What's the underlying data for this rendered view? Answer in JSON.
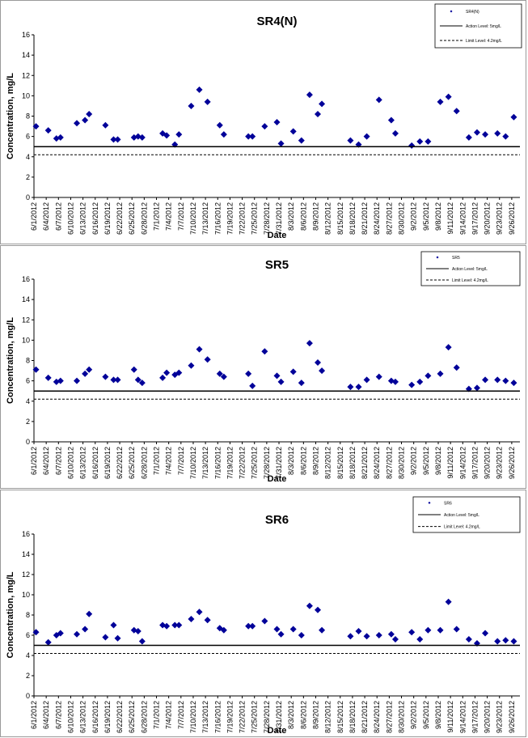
{
  "chart_data": [
    {
      "type": "scatter",
      "title": "SR4(N)",
      "xlabel": "Date",
      "ylabel": "Concentration, mg/L",
      "ylim": [
        0,
        16
      ],
      "yticks": [
        "0",
        "2",
        "4",
        "6",
        "8",
        "10",
        "12",
        "14",
        "16"
      ],
      "grid": false,
      "legend_position": "top-right",
      "x_tick_labels": [
        "6/1/2012",
        "6/4/2012",
        "6/7/2012",
        "6/10/2012",
        "6/13/2012",
        "6/16/2012",
        "6/19/2012",
        "6/22/2012",
        "6/25/2012",
        "6/28/2012",
        "7/1/2012",
        "7/4/2012",
        "7/7/2012",
        "7/10/2012",
        "7/13/2012",
        "7/16/2012",
        "7/19/2012",
        "7/22/2012",
        "7/25/2012",
        "7/28/2012",
        "7/31/2012",
        "8/3/2012",
        "8/6/2012",
        "8/9/2012",
        "8/12/2012",
        "8/15/2012",
        "8/18/2012",
        "8/21/2012",
        "8/24/2012",
        "8/27/2012",
        "8/30/2012",
        "9/2/2012",
        "9/5/2012",
        "9/8/2012",
        "9/11/2012",
        "9/14/2012",
        "9/17/2012",
        "9/20/2012",
        "9/23/2012",
        "9/26/2012"
      ],
      "series": [
        {
          "name": "SR4(N)",
          "marker": "diamond",
          "color": "#000099",
          "points": [
            [
              "6/1/2012",
              7.0
            ],
            [
              "6/4/2012",
              6.6
            ],
            [
              "6/6/2012",
              5.8
            ],
            [
              "6/7/2012",
              5.9
            ],
            [
              "6/11/2012",
              7.3
            ],
            [
              "6/13/2012",
              7.6
            ],
            [
              "6/14/2012",
              8.2
            ],
            [
              "6/18/2012",
              7.1
            ],
            [
              "6/20/2012",
              5.7
            ],
            [
              "6/21/2012",
              5.7
            ],
            [
              "6/25/2012",
              5.9
            ],
            [
              "6/26/2012",
              6.0
            ],
            [
              "6/27/2012",
              5.9
            ],
            [
              "7/2/2012",
              6.3
            ],
            [
              "7/3/2012",
              6.1
            ],
            [
              "7/5/2012",
              5.2
            ],
            [
              "7/6/2012",
              6.2
            ],
            [
              "7/9/2012",
              9.0
            ],
            [
              "7/11/2012",
              10.6
            ],
            [
              "7/13/2012",
              9.4
            ],
            [
              "7/16/2012",
              7.1
            ],
            [
              "7/17/2012",
              6.2
            ],
            [
              "7/23/2012",
              6.0
            ],
            [
              "7/24/2012",
              6.0
            ],
            [
              "7/27/2012",
              7.0
            ],
            [
              "7/30/2012",
              7.4
            ],
            [
              "7/31/2012",
              5.3
            ],
            [
              "8/3/2012",
              6.5
            ],
            [
              "8/5/2012",
              5.6
            ],
            [
              "8/7/2012",
              10.1
            ],
            [
              "8/9/2012",
              8.2
            ],
            [
              "8/10/2012",
              9.2
            ],
            [
              "8/17/2012",
              5.6
            ],
            [
              "8/19/2012",
              5.2
            ],
            [
              "8/21/2012",
              6.0
            ],
            [
              "8/24/2012",
              9.6
            ],
            [
              "8/27/2012",
              7.6
            ],
            [
              "8/28/2012",
              6.3
            ],
            [
              "9/1/2012",
              5.1
            ],
            [
              "9/3/2012",
              5.5
            ],
            [
              "9/5/2012",
              5.5
            ],
            [
              "9/8/2012",
              9.4
            ],
            [
              "9/10/2012",
              9.9
            ],
            [
              "9/12/2012",
              8.5
            ],
            [
              "9/15/2012",
              5.9
            ],
            [
              "9/17/2012",
              6.4
            ],
            [
              "9/19/2012",
              6.2
            ],
            [
              "9/22/2012",
              6.3
            ],
            [
              "9/24/2012",
              6.0
            ],
            [
              "9/26/2012",
              7.9
            ]
          ]
        },
        {
          "name": "Action Level: 5mg/L",
          "type": "hline",
          "value": 5,
          "style": "solid"
        },
        {
          "name": "Limit Level: 4.2mg/L",
          "type": "hline",
          "value": 4.2,
          "style": "dashed"
        }
      ]
    },
    {
      "type": "scatter",
      "title": "SR5",
      "xlabel": "Date",
      "ylabel": "Concentration, mg/L",
      "ylim": [
        0,
        16
      ],
      "yticks": [
        "0",
        "2",
        "4",
        "6",
        "8",
        "10",
        "12",
        "14",
        "16"
      ],
      "grid": false,
      "legend_position": "top-right",
      "x_tick_labels": [
        "6/1/2012",
        "6/4/2012",
        "6/7/2012",
        "6/10/2012",
        "6/13/2012",
        "6/16/2012",
        "6/19/2012",
        "6/22/2012",
        "6/25/2012",
        "6/28/2012",
        "7/1/2012",
        "7/4/2012",
        "7/7/2012",
        "7/10/2012",
        "7/13/2012",
        "7/16/2012",
        "7/19/2012",
        "7/22/2012",
        "7/25/2012",
        "7/28/2012",
        "7/31/2012",
        "8/3/2012",
        "8/6/2012",
        "8/9/2012",
        "8/12/2012",
        "8/15/2012",
        "8/18/2012",
        "8/21/2012",
        "8/24/2012",
        "8/27/2012",
        "8/30/2012",
        "9/2/2012",
        "9/5/2012",
        "9/8/2012",
        "9/11/2012",
        "9/14/2012",
        "9/17/2012",
        "9/20/2012",
        "9/23/2012",
        "9/26/2012"
      ],
      "series": [
        {
          "name": "SR5",
          "marker": "diamond",
          "color": "#000099",
          "points": [
            [
              "6/1/2012",
              7.1
            ],
            [
              "6/4/2012",
              6.3
            ],
            [
              "6/6/2012",
              5.9
            ],
            [
              "6/7/2012",
              6.0
            ],
            [
              "6/11/2012",
              6.0
            ],
            [
              "6/13/2012",
              6.7
            ],
            [
              "6/14/2012",
              7.1
            ],
            [
              "6/18/2012",
              6.4
            ],
            [
              "6/20/2012",
              6.1
            ],
            [
              "6/21/2012",
              6.1
            ],
            [
              "6/25/2012",
              7.1
            ],
            [
              "6/26/2012",
              6.1
            ],
            [
              "6/27/2012",
              5.8
            ],
            [
              "7/2/2012",
              6.3
            ],
            [
              "7/3/2012",
              6.8
            ],
            [
              "7/5/2012",
              6.6
            ],
            [
              "7/6/2012",
              6.8
            ],
            [
              "7/9/2012",
              7.5
            ],
            [
              "7/11/2012",
              9.1
            ],
            [
              "7/13/2012",
              8.1
            ],
            [
              "7/16/2012",
              6.7
            ],
            [
              "7/17/2012",
              6.4
            ],
            [
              "7/23/2012",
              6.7
            ],
            [
              "7/24/2012",
              5.5
            ],
            [
              "7/27/2012",
              8.9
            ],
            [
              "7/30/2012",
              6.5
            ],
            [
              "7/31/2012",
              5.9
            ],
            [
              "8/3/2012",
              6.9
            ],
            [
              "8/5/2012",
              5.8
            ],
            [
              "8/7/2012",
              9.7
            ],
            [
              "8/9/2012",
              7.8
            ],
            [
              "8/10/2012",
              7.0
            ],
            [
              "8/17/2012",
              5.4
            ],
            [
              "8/19/2012",
              5.4
            ],
            [
              "8/21/2012",
              6.1
            ],
            [
              "8/24/2012",
              6.4
            ],
            [
              "8/27/2012",
              6.0
            ],
            [
              "8/28/2012",
              5.9
            ],
            [
              "9/1/2012",
              5.6
            ],
            [
              "9/3/2012",
              5.9
            ],
            [
              "9/5/2012",
              6.5
            ],
            [
              "9/8/2012",
              6.7
            ],
            [
              "9/10/2012",
              9.3
            ],
            [
              "9/12/2012",
              7.3
            ],
            [
              "9/15/2012",
              5.2
            ],
            [
              "9/17/2012",
              5.3
            ],
            [
              "9/19/2012",
              6.1
            ],
            [
              "9/22/2012",
              6.1
            ],
            [
              "9/24/2012",
              6.0
            ],
            [
              "9/26/2012",
              5.8
            ]
          ]
        },
        {
          "name": "Action Level: 5mg/L",
          "type": "hline",
          "value": 5,
          "style": "solid"
        },
        {
          "name": "Limit Level: 4.2mg/L",
          "type": "hline",
          "value": 4.2,
          "style": "dashed"
        }
      ]
    },
    {
      "type": "scatter",
      "title": "SR6",
      "xlabel": "Date",
      "ylabel": "Concentration, mg/L",
      "ylim": [
        0,
        16
      ],
      "yticks": [
        "0",
        "2",
        "4",
        "6",
        "8",
        "10",
        "12",
        "14",
        "16"
      ],
      "grid": false,
      "legend_position": "top-right",
      "x_tick_labels": [
        "6/1/2012",
        "6/4/2012",
        "6/7/2012",
        "6/10/2012",
        "6/13/2012",
        "6/16/2012",
        "6/19/2012",
        "6/22/2012",
        "6/25/2012",
        "6/28/2012",
        "7/1/2012",
        "7/4/2012",
        "7/7/2012",
        "7/10/2012",
        "7/13/2012",
        "7/16/2012",
        "7/19/2012",
        "7/22/2012",
        "7/25/2012",
        "7/28/2012",
        "7/31/2012",
        "8/3/2012",
        "8/6/2012",
        "8/9/2012",
        "8/12/2012",
        "8/15/2012",
        "8/18/2012",
        "8/21/2012",
        "8/24/2012",
        "8/27/2012",
        "8/30/2012",
        "9/2/2012",
        "9/5/2012",
        "9/8/2012",
        "9/11/2012",
        "9/14/2012",
        "9/17/2012",
        "9/20/2012",
        "9/23/2012",
        "9/26/2012"
      ],
      "series": [
        {
          "name": "SR6",
          "marker": "diamond",
          "color": "#000099",
          "points": [
            [
              "6/1/2012",
              6.3
            ],
            [
              "6/4/2012",
              5.3
            ],
            [
              "6/6/2012",
              6.0
            ],
            [
              "6/7/2012",
              6.2
            ],
            [
              "6/11/2012",
              6.1
            ],
            [
              "6/13/2012",
              6.6
            ],
            [
              "6/14/2012",
              8.1
            ],
            [
              "6/18/2012",
              5.8
            ],
            [
              "6/20/2012",
              7.0
            ],
            [
              "6/21/2012",
              5.7
            ],
            [
              "6/25/2012",
              6.5
            ],
            [
              "6/26/2012",
              6.4
            ],
            [
              "6/27/2012",
              5.4
            ],
            [
              "7/2/2012",
              7.0
            ],
            [
              "7/3/2012",
              6.9
            ],
            [
              "7/5/2012",
              7.0
            ],
            [
              "7/6/2012",
              7.0
            ],
            [
              "7/9/2012",
              7.6
            ],
            [
              "7/11/2012",
              8.3
            ],
            [
              "7/13/2012",
              7.5
            ],
            [
              "7/16/2012",
              6.7
            ],
            [
              "7/17/2012",
              6.5
            ],
            [
              "7/23/2012",
              6.9
            ],
            [
              "7/24/2012",
              6.9
            ],
            [
              "7/27/2012",
              7.4
            ],
            [
              "7/30/2012",
              6.6
            ],
            [
              "7/31/2012",
              6.1
            ],
            [
              "8/3/2012",
              6.6
            ],
            [
              "8/5/2012",
              6.0
            ],
            [
              "8/7/2012",
              8.9
            ],
            [
              "8/9/2012",
              8.5
            ],
            [
              "8/10/2012",
              6.5
            ],
            [
              "8/17/2012",
              5.9
            ],
            [
              "8/19/2012",
              6.4
            ],
            [
              "8/21/2012",
              5.9
            ],
            [
              "8/24/2012",
              6.0
            ],
            [
              "8/27/2012",
              6.1
            ],
            [
              "8/28/2012",
              5.6
            ],
            [
              "9/1/2012",
              6.3
            ],
            [
              "9/3/2012",
              5.6
            ],
            [
              "9/5/2012",
              6.5
            ],
            [
              "9/8/2012",
              6.5
            ],
            [
              "9/10/2012",
              9.3
            ],
            [
              "9/12/2012",
              6.6
            ],
            [
              "9/15/2012",
              5.6
            ],
            [
              "9/17/2012",
              5.2
            ],
            [
              "9/19/2012",
              6.2
            ],
            [
              "9/22/2012",
              5.4
            ],
            [
              "9/24/2012",
              5.5
            ],
            [
              "9/26/2012",
              5.4
            ]
          ]
        },
        {
          "name": "Action Level: 5mg/L",
          "type": "hline",
          "value": 5,
          "style": "solid"
        },
        {
          "name": "Limit Level: 4.2mg/L",
          "type": "hline",
          "value": 4.2,
          "style": "dashed"
        }
      ]
    }
  ]
}
